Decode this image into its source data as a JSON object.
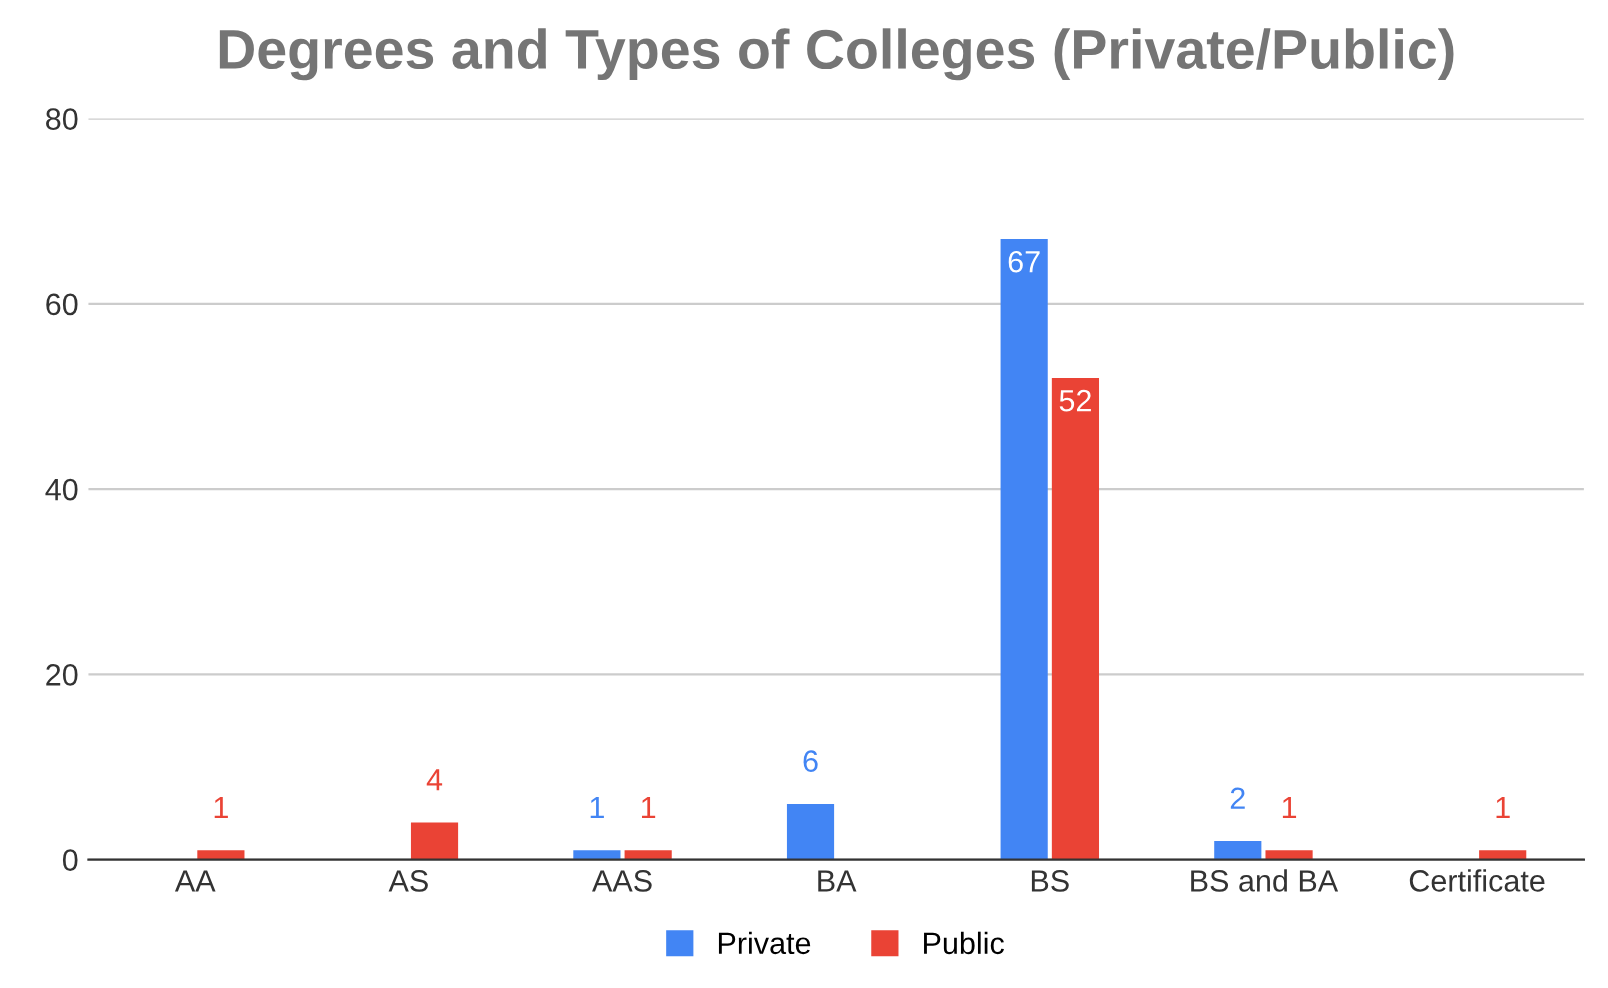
{
  "chart_data": {
    "type": "bar",
    "title": "Degrees and Types of Colleges (Private/Public)",
    "categories": [
      "AA",
      "AS",
      "AAS",
      "BA",
      "BS",
      "BS and BA",
      "Certificate"
    ],
    "series": [
      {
        "name": "Private",
        "color": "#4285f4",
        "values": [
          null,
          null,
          1,
          6,
          67,
          2,
          null
        ]
      },
      {
        "name": "Public",
        "color": "#ea4335",
        "values": [
          1,
          4,
          1,
          null,
          52,
          1,
          1
        ]
      }
    ],
    "ylim": [
      0,
      80
    ],
    "yticks": [
      0,
      20,
      40,
      60,
      80
    ],
    "grid": "y",
    "legend": "bottom",
    "data_labels": true
  }
}
